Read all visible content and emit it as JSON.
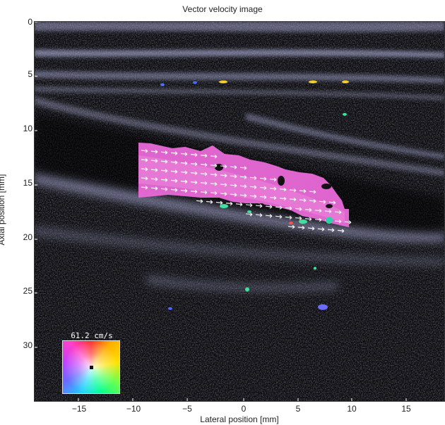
{
  "title": "Vector velocity image",
  "axes": {
    "xlabel": "Lateral position [mm]",
    "ylabel": "Axial position [mm]",
    "xticks": [
      "−15",
      "−10",
      "−5",
      "0",
      "5",
      "10",
      "15"
    ],
    "yticks": [
      "0",
      "5",
      "10",
      "15",
      "20",
      "25",
      "30"
    ],
    "xlim": [
      -19,
      18.5
    ],
    "ylim": [
      0,
      35
    ]
  },
  "colorbar": {
    "max_label": "61.2 cm/s"
  },
  "colors": {
    "background": "#0b0b0e",
    "tissue": "#b7b9e6",
    "flow": "#ea6ad8",
    "arrow": "#ffffff"
  },
  "icons": {
    "colorwheel": "velocity-direction-colorwheel"
  }
}
